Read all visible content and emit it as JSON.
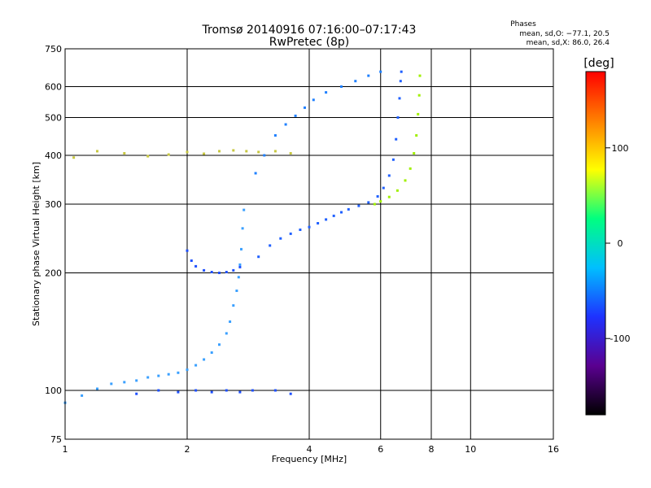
{
  "chart_data": {
    "type": "scatter",
    "title": "Tromsø 20140916 07:16:00–07:17:43",
    "subtitle": "RwPretec (8p)",
    "xlabel": "Frequency [MHz]",
    "ylabel": "Stationary phase Virtual Height [km]",
    "x_scale": "log",
    "y_scale": "log",
    "xlim": [
      1,
      16
    ],
    "ylim": [
      75,
      750
    ],
    "x_ticks": [
      1,
      2,
      4,
      6,
      8,
      10,
      16
    ],
    "y_ticks": [
      75,
      100,
      200,
      300,
      400,
      500,
      600,
      750
    ],
    "grid": true,
    "phase_stats": {
      "heading": "Phases",
      "o_line": "mean, sd,O: −77.1, 20.5",
      "x_line": "mean, sd,X:  86.0, 26.4"
    },
    "colorbar": {
      "label": "[deg]",
      "ticks": [
        100,
        0,
        -100
      ],
      "range": [
        -180,
        180
      ],
      "colors": [
        "#000000",
        "#5a0090",
        "#1e32ff",
        "#00bfff",
        "#00ff80",
        "#ffff00",
        "#ff8000",
        "#ff0000"
      ]
    },
    "traces": [
      {
        "name": "",
        "color": "#3aa0ff",
        "points": [
          [
            1.0,
            93
          ],
          [
            1.1,
            97
          ],
          [
            1.2,
            101
          ],
          [
            1.3,
            104
          ],
          [
            1.4,
            105
          ],
          [
            1.5,
            106
          ],
          [
            1.6,
            108
          ],
          [
            1.7,
            109
          ],
          [
            1.8,
            110
          ],
          [
            1.9,
            111
          ],
          [
            2.0,
            113
          ],
          [
            2.1,
            116
          ],
          [
            2.2,
            120
          ],
          [
            2.3,
            125
          ],
          [
            2.4,
            131
          ],
          [
            2.5,
            140
          ],
          [
            2.55,
            150
          ],
          [
            2.6,
            165
          ],
          [
            2.65,
            180
          ],
          [
            2.68,
            195
          ],
          [
            2.7,
            210
          ],
          [
            2.72,
            230
          ],
          [
            2.74,
            260
          ],
          [
            2.76,
            290
          ]
        ]
      },
      {
        "name": "",
        "color": "#1e50ff",
        "points": [
          [
            2.0,
            228
          ],
          [
            2.05,
            215
          ],
          [
            2.1,
            208
          ],
          [
            2.2,
            203
          ],
          [
            2.3,
            201
          ],
          [
            2.4,
            200
          ],
          [
            2.5,
            201
          ],
          [
            2.6,
            203
          ],
          [
            2.7,
            207
          ]
        ]
      },
      {
        "name": "",
        "color": "#2060ff",
        "points": [
          [
            3.0,
            220
          ],
          [
            3.2,
            235
          ],
          [
            3.4,
            245
          ],
          [
            3.6,
            252
          ],
          [
            3.8,
            258
          ],
          [
            4.0,
            262
          ],
          [
            4.2,
            268
          ],
          [
            4.4,
            274
          ],
          [
            4.6,
            280
          ],
          [
            4.8,
            286
          ],
          [
            5.0,
            291
          ],
          [
            5.3,
            297
          ],
          [
            5.6,
            303
          ],
          [
            5.9,
            314
          ],
          [
            6.1,
            330
          ],
          [
            6.3,
            355
          ],
          [
            6.45,
            390
          ],
          [
            6.55,
            440
          ],
          [
            6.62,
            500
          ],
          [
            6.68,
            560
          ],
          [
            6.72,
            620
          ],
          [
            6.75,
            655
          ]
        ]
      },
      {
        "name": "",
        "color": "#a0f000",
        "points": [
          [
            5.8,
            300
          ],
          [
            6.0,
            305
          ],
          [
            6.3,
            313
          ],
          [
            6.6,
            325
          ],
          [
            6.9,
            345
          ],
          [
            7.1,
            370
          ],
          [
            7.25,
            405
          ],
          [
            7.35,
            450
          ],
          [
            7.42,
            510
          ],
          [
            7.47,
            570
          ],
          [
            7.5,
            640
          ]
        ]
      },
      {
        "name": "",
        "color": "#1f80ff",
        "points": [
          [
            2.95,
            360
          ],
          [
            3.1,
            400
          ],
          [
            3.3,
            450
          ],
          [
            3.5,
            480
          ],
          [
            3.7,
            505
          ],
          [
            3.9,
            530
          ],
          [
            4.1,
            555
          ],
          [
            4.4,
            580
          ],
          [
            4.8,
            600
          ],
          [
            5.2,
            620
          ],
          [
            5.6,
            640
          ],
          [
            6.0,
            655
          ]
        ]
      },
      {
        "name": "",
        "color": "#c8c840",
        "points": [
          [
            1.05,
            395
          ],
          [
            1.2,
            410
          ],
          [
            1.4,
            405
          ],
          [
            1.6,
            398
          ],
          [
            1.8,
            402
          ],
          [
            2.0,
            408
          ],
          [
            2.2,
            404
          ],
          [
            2.4,
            410
          ],
          [
            2.6,
            412
          ],
          [
            2.8,
            410
          ],
          [
            3.0,
            408
          ],
          [
            3.3,
            410
          ],
          [
            3.6,
            405
          ]
        ]
      },
      {
        "name": "",
        "color": "#1e50ff",
        "points": [
          [
            1.5,
            98
          ],
          [
            1.7,
            100
          ],
          [
            1.9,
            99
          ],
          [
            2.1,
            100
          ],
          [
            2.3,
            99
          ],
          [
            2.5,
            100
          ],
          [
            2.7,
            99
          ],
          [
            2.9,
            100
          ],
          [
            3.3,
            100
          ],
          [
            3.6,
            98
          ]
        ]
      }
    ]
  }
}
